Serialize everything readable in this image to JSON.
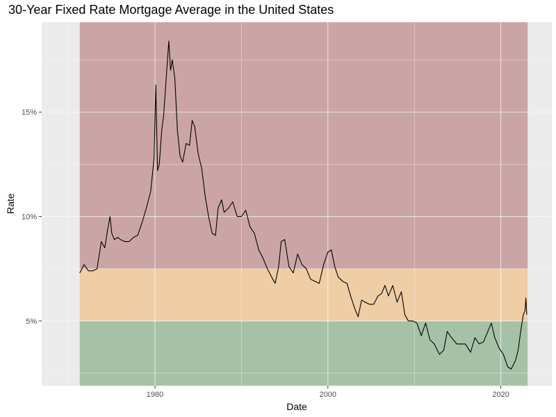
{
  "chart_data": {
    "type": "line",
    "title": "30-Year Fixed Rate Mortgage Average in the United States",
    "xlabel": "Date",
    "ylabel": "Rate",
    "xlim": [
      1966.9,
      2025.9
    ],
    "ylim": [
      1.9,
      19.3
    ],
    "x_ticks": [
      {
        "value": 1980,
        "label": "1980"
      },
      {
        "value": 2000,
        "label": "2000"
      },
      {
        "value": 2020,
        "label": "2020"
      }
    ],
    "y_ticks": [
      {
        "value": 5,
        "label": "5%"
      },
      {
        "value": 10,
        "label": "10%"
      },
      {
        "value": 15,
        "label": "15%"
      }
    ],
    "grid": true,
    "bands": [
      {
        "ymin": 1.9,
        "ymax": 5.0,
        "x_start": 1971.3,
        "x_end": 2023.1,
        "color": "#a6c2a6"
      },
      {
        "ymin": 5.0,
        "ymax": 7.5,
        "x_start": 1971.3,
        "x_end": 2023.1,
        "color": "#efcda5"
      },
      {
        "ymin": 7.5,
        "ymax": 19.3,
        "x_start": 1971.3,
        "x_end": 2023.1,
        "color": "#cba5a5"
      }
    ],
    "colors": {
      "background": "#ebebeb",
      "grid": "#ffffff",
      "line": "#000000"
    },
    "series": [
      {
        "x": [
          1971.3,
          1971.8,
          1972.3,
          1972.8,
          1973.3,
          1973.8,
          1974.2,
          1974.5,
          1974.8,
          1975.0,
          1975.3,
          1975.7,
          1976.0,
          1976.5,
          1977.0,
          1977.5,
          1978.0,
          1978.5,
          1979.0,
          1979.5,
          1979.9,
          1980.1,
          1980.3,
          1980.5,
          1980.8,
          1981.0,
          1981.3,
          1981.6,
          1981.8,
          1982.0,
          1982.3,
          1982.6,
          1982.9,
          1983.2,
          1983.6,
          1984.0,
          1984.3,
          1984.6,
          1985.0,
          1985.4,
          1985.8,
          1986.2,
          1986.6,
          1987.0,
          1987.3,
          1987.7,
          1988.0,
          1988.5,
          1989.0,
          1989.5,
          1990.0,
          1990.5,
          1991.0,
          1991.5,
          1992.0,
          1992.5,
          1993.0,
          1993.5,
          1993.9,
          1994.3,
          1994.6,
          1995.0,
          1995.5,
          1996.0,
          1996.5,
          1997.0,
          1997.5,
          1998.0,
          1998.5,
          1999.0,
          1999.5,
          2000.0,
          2000.4,
          2000.8,
          2001.2,
          2001.7,
          2002.2,
          2002.7,
          2003.1,
          2003.5,
          2003.9,
          2004.3,
          2004.8,
          2005.3,
          2005.8,
          2006.2,
          2006.6,
          2007.0,
          2007.5,
          2008.0,
          2008.5,
          2008.9,
          2009.3,
          2009.8,
          2010.3,
          2010.8,
          2011.3,
          2011.8,
          2012.3,
          2012.9,
          2013.4,
          2013.8,
          2014.3,
          2014.9,
          2015.4,
          2015.9,
          2016.5,
          2017.0,
          2017.5,
          2018.0,
          2018.5,
          2018.9,
          2019.3,
          2019.8,
          2020.3,
          2020.8,
          2021.2,
          2021.7,
          2022.0,
          2022.3,
          2022.6,
          2022.8,
          2022.9,
          2023.0
        ],
        "y": [
          7.3,
          7.7,
          7.4,
          7.4,
          7.5,
          8.8,
          8.5,
          9.3,
          10.0,
          9.2,
          8.9,
          9.0,
          8.9,
          8.8,
          8.8,
          9.0,
          9.1,
          9.7,
          10.4,
          11.2,
          12.8,
          16.3,
          12.2,
          12.5,
          14.2,
          14.8,
          16.6,
          18.4,
          17.0,
          17.5,
          16.6,
          14.1,
          12.9,
          12.6,
          13.5,
          13.4,
          14.6,
          14.3,
          13.0,
          12.3,
          11.0,
          10.0,
          9.2,
          9.1,
          10.4,
          10.8,
          10.2,
          10.4,
          10.7,
          10.0,
          10.0,
          10.3,
          9.5,
          9.2,
          8.4,
          8.0,
          7.5,
          7.1,
          6.8,
          7.6,
          8.8,
          8.9,
          7.6,
          7.3,
          8.2,
          7.7,
          7.5,
          7.0,
          6.9,
          6.8,
          7.7,
          8.3,
          8.4,
          7.6,
          7.1,
          6.9,
          6.8,
          6.1,
          5.6,
          5.2,
          6.0,
          5.9,
          5.8,
          5.8,
          6.2,
          6.3,
          6.7,
          6.2,
          6.7,
          5.9,
          6.4,
          5.3,
          5.0,
          5.0,
          4.9,
          4.3,
          4.9,
          4.1,
          3.9,
          3.4,
          3.6,
          4.5,
          4.2,
          3.9,
          3.9,
          3.9,
          3.5,
          4.2,
          3.9,
          4.0,
          4.5,
          4.9,
          4.2,
          3.7,
          3.4,
          2.8,
          2.7,
          3.1,
          3.6,
          4.5,
          5.3,
          5.5,
          6.1,
          5.3
        ]
      }
    ]
  }
}
